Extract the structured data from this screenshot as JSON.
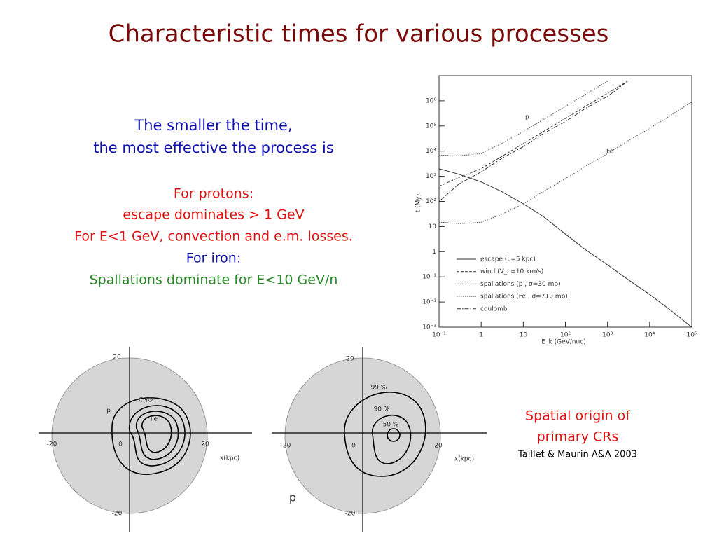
{
  "slide": {
    "title": "Characteristic times for various processes",
    "intro": [
      "The smaller the time,",
      "the most effective the process is"
    ],
    "protons": [
      "For protons:",
      "escape dominates > 1 GeV",
      "For E<1 GeV, convection and e.m. losses."
    ],
    "iron": [
      "For iron:",
      "Spallations dominate for E<10 GeV/n"
    ],
    "origin": [
      "Spatial origin of",
      "primary CRs"
    ],
    "reference": "Taillet & Maurin A&A 2003"
  },
  "chart_data": {
    "type": "line",
    "xlabel": "E_k (GeV/nuc)",
    "ylabel": "t (My)",
    "xscale": "log",
    "yscale": "log",
    "xlim": [
      0.1,
      100000
    ],
    "ylim": [
      0.001,
      10000000
    ],
    "xticks": [
      {
        "value": 0.1,
        "label": "10⁻¹"
      },
      1,
      10,
      {
        "value": 100,
        "label": "10²"
      },
      {
        "value": 1000,
        "label": "10³"
      },
      {
        "value": 10000,
        "label": "10⁴"
      },
      {
        "value": 100000,
        "label": "10⁵"
      }
    ],
    "yticks": [
      {
        "value": 0.001,
        "label": "10⁻³"
      },
      {
        "value": 0.01,
        "label": "10⁻²"
      },
      {
        "value": 0.1,
        "label": "10⁻¹"
      },
      1,
      10,
      {
        "value": 100,
        "label": "10²"
      },
      {
        "value": 1000,
        "label": "10³"
      },
      {
        "value": 10000,
        "label": "10⁴"
      },
      {
        "value": 100000,
        "label": "10⁵"
      },
      {
        "value": 1000000,
        "label": "10⁶"
      }
    ],
    "annotations": [
      "p",
      "Fe"
    ],
    "x": [
      0.1,
      0.3,
      1,
      3,
      10,
      30,
      100,
      300,
      1000,
      3000,
      10000,
      30000,
      100000
    ],
    "series": [
      {
        "name": "escape (L=5 kpc)",
        "color": "#333333",
        "style": "solid",
        "values": [
          2000,
          1200,
          600,
          250,
          80,
          25,
          5,
          1.2,
          0.3,
          0.08,
          0.02,
          0.005,
          0.001
        ]
      },
      {
        "name": "wind (V_c=10 km/s)",
        "color": "#333333",
        "style": "dashed",
        "values": [
          400,
          900,
          2000,
          6000,
          20000,
          60000,
          200000,
          600000,
          2000000,
          6000000,
          null,
          null,
          null
        ]
      },
      {
        "name": "spallations (p , σ=30 mb)",
        "color": "#555555",
        "style": "dotted",
        "values": [
          7000,
          6500,
          8000,
          20000,
          60000,
          180000,
          600000,
          1800000,
          6000000,
          null,
          null,
          null,
          null
        ]
      },
      {
        "name": "spallations (Fe , σ=710 mb)",
        "color": "#555555",
        "style": "dotted",
        "values": [
          15,
          13,
          15,
          30,
          80,
          250,
          800,
          2500,
          8000,
          25000,
          80000,
          250000,
          900000
        ]
      },
      {
        "name": "coulomb",
        "color": "#333333",
        "style": "dashdot",
        "values": [
          100,
          500,
          1500,
          5000,
          15000,
          50000,
          150000,
          500000,
          1500000,
          6000000,
          null,
          null,
          null
        ]
      }
    ]
  },
  "diagrams": {
    "left": {
      "ticks": [
        "20",
        "-20",
        "0",
        "20",
        "-20"
      ],
      "axis": "x(kpc)",
      "labels": [
        "p",
        "CNO",
        "Fe"
      ]
    },
    "right": {
      "ticks": [
        "20",
        "-20",
        "0",
        "20",
        "-20"
      ],
      "axis": "x(kpc)",
      "labels": [
        "99 %",
        "90 %",
        "50 %",
        "p"
      ]
    }
  }
}
